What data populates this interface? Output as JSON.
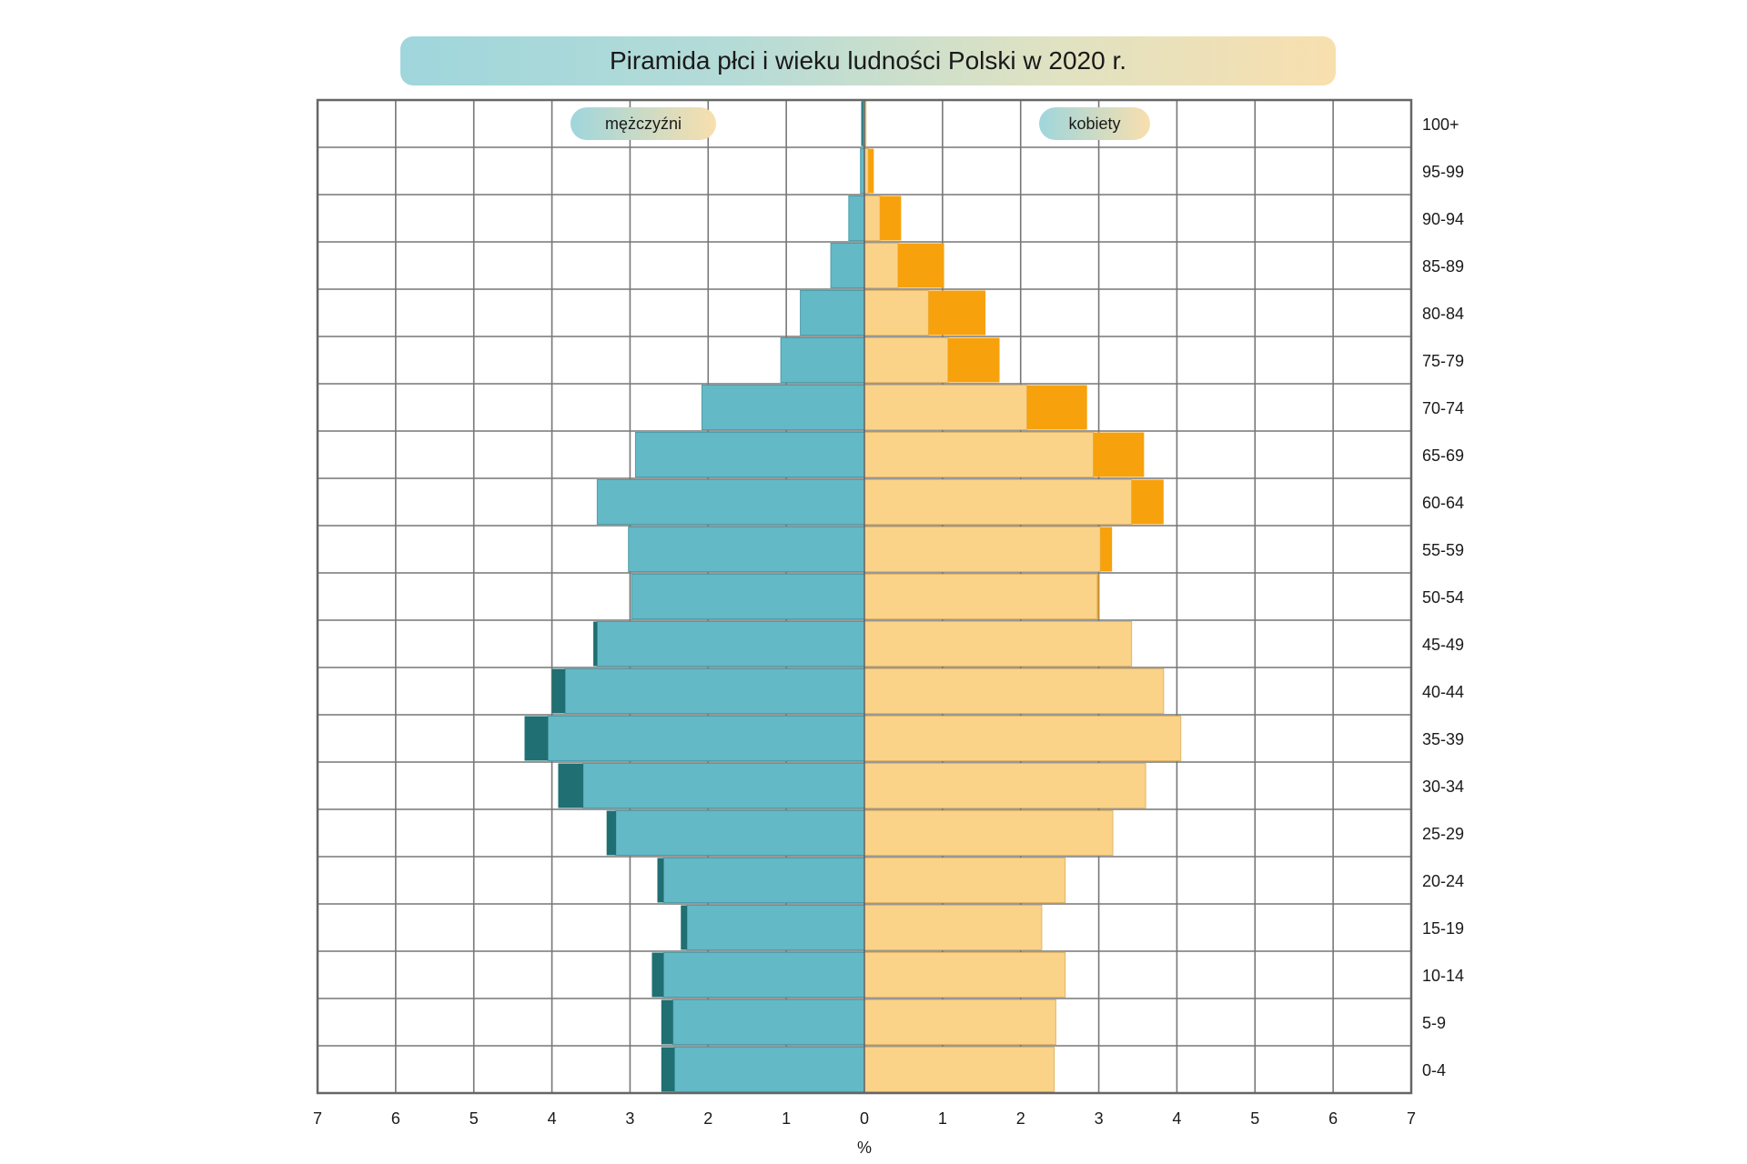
{
  "chart_data": {
    "type": "bar",
    "title": "Piramida płci i wieku ludności Polski w 2020 r.",
    "xlabel": "%",
    "ylabel": "",
    "xlim": [
      -7,
      7
    ],
    "x_tick_labels": [
      "7",
      "6",
      "5",
      "4",
      "3",
      "2",
      "1",
      "0",
      "1",
      "2",
      "3",
      "4",
      "5",
      "6",
      "7"
    ],
    "grid": true,
    "legend": [
      {
        "name": "mężczyźni",
        "position": "top-left"
      },
      {
        "name": "kobiety",
        "position": "top-right"
      }
    ],
    "categories": [
      "0-4",
      "5-9",
      "10-14",
      "15-19",
      "20-24",
      "25-29",
      "30-34",
      "35-39",
      "40-44",
      "45-49",
      "50-54",
      "55-59",
      "60-64",
      "65-69",
      "70-74",
      "75-79",
      "80-84",
      "85-89",
      "90-94",
      "95-99",
      "100+"
    ],
    "series": [
      {
        "name": "mężczyźni",
        "color": "#63b9c6",
        "surplus_color": "#1f6f73",
        "values": [
          2.6,
          2.6,
          2.72,
          2.35,
          2.65,
          3.3,
          3.92,
          4.35,
          4.0,
          3.47,
          2.98,
          3.02,
          3.42,
          2.93,
          2.08,
          1.07,
          0.82,
          0.43,
          0.2,
          0.05,
          0.04
        ]
      },
      {
        "name": "kobiety",
        "color": "#fad388",
        "surplus_color": "#f7a10c",
        "values": [
          2.43,
          2.45,
          2.57,
          2.27,
          2.57,
          3.18,
          3.6,
          4.05,
          3.83,
          3.42,
          3.0,
          3.17,
          3.83,
          3.58,
          2.85,
          1.73,
          1.55,
          1.02,
          0.47,
          0.12,
          0.02
        ]
      }
    ]
  }
}
